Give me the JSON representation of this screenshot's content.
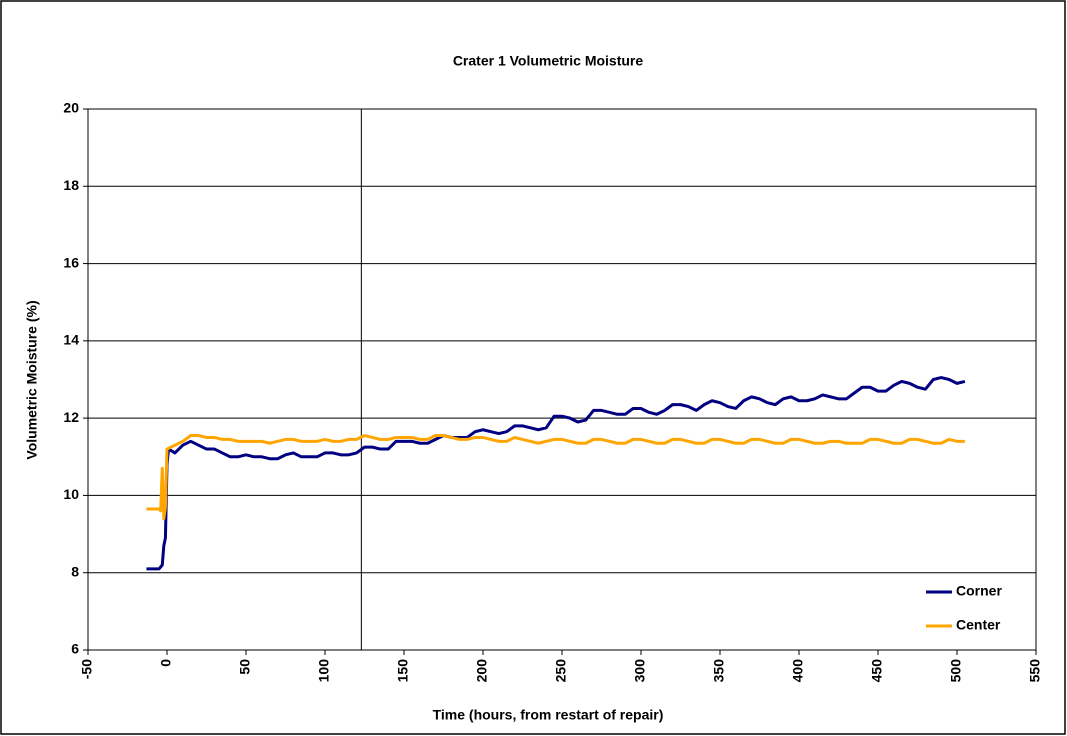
{
  "chart_data": {
    "type": "line",
    "title": "Crater 1 Volumetric Moisture",
    "x_label": "Time (hours, from restart of repair)",
    "y_label": "Volumetric Moisture (%)",
    "xlim": [
      -50,
      550
    ],
    "xticks": [
      -50,
      0,
      50,
      100,
      150,
      200,
      250,
      300,
      350,
      400,
      450,
      500,
      550
    ],
    "ylim": [
      6,
      20
    ],
    "yticks": [
      6,
      8,
      10,
      12,
      14,
      16,
      18,
      20
    ],
    "grid": true,
    "legend": "lower right",
    "vline": 123,
    "series": [
      {
        "name": "Corner",
        "color": "#000080",
        "x": [
          -13,
          -5,
          -3,
          -2,
          -1,
          0,
          1,
          5,
          10,
          15,
          20,
          25,
          30,
          35,
          40,
          45,
          50,
          55,
          60,
          65,
          70,
          75,
          80,
          85,
          90,
          95,
          100,
          105,
          110,
          115,
          120,
          125,
          130,
          135,
          140,
          145,
          150,
          155,
          160,
          165,
          170,
          175,
          180,
          185,
          190,
          195,
          200,
          205,
          210,
          215,
          220,
          225,
          230,
          235,
          240,
          245,
          250,
          255,
          260,
          265,
          270,
          275,
          280,
          285,
          290,
          295,
          300,
          305,
          310,
          315,
          320,
          325,
          330,
          335,
          340,
          345,
          350,
          355,
          360,
          365,
          370,
          375,
          380,
          385,
          390,
          395,
          400,
          405,
          410,
          415,
          420,
          425,
          430,
          435,
          440,
          445,
          450,
          455,
          460,
          465,
          470,
          475,
          480,
          485,
          490,
          495,
          500,
          505
        ],
        "values": [
          8.1,
          8.1,
          8.2,
          8.7,
          8.9,
          10.8,
          11.2,
          11.1,
          11.3,
          11.4,
          11.3,
          11.2,
          11.2,
          11.1,
          11.0,
          11.0,
          11.05,
          11.0,
          11.0,
          10.95,
          10.95,
          11.05,
          11.1,
          11.0,
          11.0,
          11.0,
          11.1,
          11.1,
          11.05,
          11.05,
          11.1,
          11.25,
          11.25,
          11.2,
          11.2,
          11.4,
          11.4,
          11.4,
          11.35,
          11.35,
          11.45,
          11.55,
          11.5,
          11.5,
          11.5,
          11.65,
          11.7,
          11.65,
          11.6,
          11.65,
          11.8,
          11.8,
          11.75,
          11.7,
          11.75,
          12.05,
          12.05,
          12.0,
          11.9,
          11.95,
          12.2,
          12.2,
          12.15,
          12.1,
          12.1,
          12.25,
          12.25,
          12.15,
          12.1,
          12.2,
          12.35,
          12.35,
          12.3,
          12.2,
          12.35,
          12.45,
          12.4,
          12.3,
          12.25,
          12.45,
          12.55,
          12.5,
          12.4,
          12.35,
          12.5,
          12.55,
          12.45,
          12.45,
          12.5,
          12.6,
          12.55,
          12.5,
          12.5,
          12.65,
          12.8,
          12.8,
          12.7,
          12.7,
          12.85,
          12.95,
          12.9,
          12.8,
          12.75,
          13.0,
          13.05,
          13.0,
          12.9,
          12.95
        ]
      },
      {
        "name": "Center",
        "color": "#ffa500",
        "x": [
          -13,
          -5,
          -4,
          -3,
          -2,
          -1,
          0,
          5,
          10,
          15,
          20,
          25,
          30,
          35,
          40,
          45,
          50,
          55,
          60,
          65,
          70,
          75,
          80,
          85,
          90,
          95,
          100,
          105,
          110,
          115,
          120,
          125,
          130,
          135,
          140,
          145,
          150,
          155,
          160,
          165,
          170,
          175,
          180,
          185,
          190,
          195,
          200,
          205,
          210,
          215,
          220,
          225,
          230,
          235,
          240,
          245,
          250,
          255,
          260,
          265,
          270,
          275,
          280,
          285,
          290,
          295,
          300,
          305,
          310,
          315,
          320,
          325,
          330,
          335,
          340,
          345,
          350,
          355,
          360,
          365,
          370,
          375,
          380,
          385,
          390,
          395,
          400,
          405,
          410,
          415,
          420,
          425,
          430,
          435,
          440,
          445,
          450,
          455,
          460,
          465,
          470,
          475,
          480,
          485,
          490,
          495,
          500,
          505
        ],
        "values": [
          9.65,
          9.65,
          9.6,
          10.7,
          9.4,
          9.7,
          11.2,
          11.3,
          11.4,
          11.55,
          11.55,
          11.5,
          11.5,
          11.45,
          11.45,
          11.4,
          11.4,
          11.4,
          11.4,
          11.35,
          11.4,
          11.45,
          11.45,
          11.4,
          11.4,
          11.4,
          11.45,
          11.4,
          11.4,
          11.45,
          11.45,
          11.55,
          11.5,
          11.45,
          11.45,
          11.5,
          11.5,
          11.5,
          11.45,
          11.45,
          11.55,
          11.55,
          11.5,
          11.45,
          11.45,
          11.5,
          11.5,
          11.45,
          11.4,
          11.4,
          11.5,
          11.45,
          11.4,
          11.35,
          11.4,
          11.45,
          11.45,
          11.4,
          11.35,
          11.35,
          11.45,
          11.45,
          11.4,
          11.35,
          11.35,
          11.45,
          11.45,
          11.4,
          11.35,
          11.35,
          11.45,
          11.45,
          11.4,
          11.35,
          11.35,
          11.45,
          11.45,
          11.4,
          11.35,
          11.35,
          11.45,
          11.45,
          11.4,
          11.35,
          11.35,
          11.45,
          11.45,
          11.4,
          11.35,
          11.35,
          11.4,
          11.4,
          11.35,
          11.35,
          11.35,
          11.45,
          11.45,
          11.4,
          11.35,
          11.35,
          11.45,
          11.45,
          11.4,
          11.35,
          11.35,
          11.45,
          11.4,
          11.4
        ]
      }
    ]
  }
}
